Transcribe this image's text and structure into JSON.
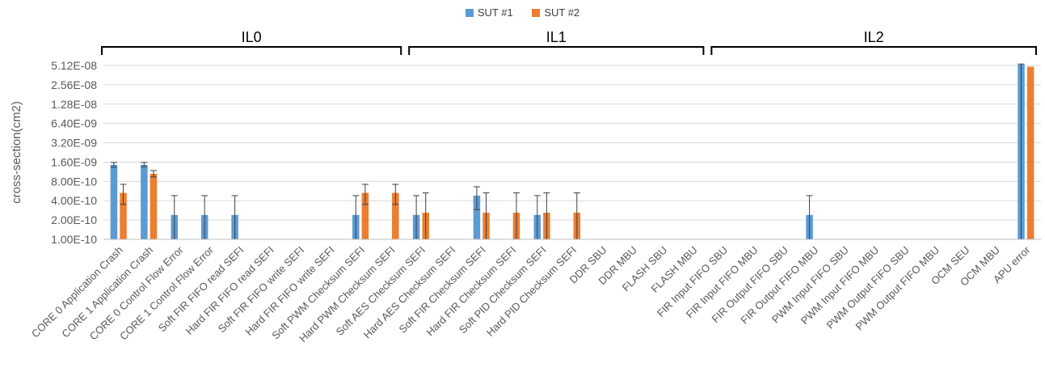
{
  "chart_data": {
    "type": "bar",
    "scale": "log2",
    "ylabel": "cross-section(cm2)",
    "yticks": [
      "1.00E-10",
      "2.00E-10",
      "4.00E-10",
      "8.00E-10",
      "1.60E-09",
      "3.20E-09",
      "6.40E-09",
      "1.28E-08",
      "2.56E-08",
      "5.12E-08"
    ],
    "ytick_values": [
      1e-10,
      2e-10,
      4e-10,
      8e-10,
      1.6e-09,
      3.2e-09,
      6.4e-09,
      1.28e-08,
      2.56e-08,
      5.12e-08
    ],
    "ylim": [
      1e-10,
      5.12e-08
    ],
    "grid": true,
    "legend_position": "top-center",
    "categories": [
      "CORE 0 Application Crash",
      "CORE 1 Application Crash",
      "CORE 0 Control Flow Error",
      "CORE 1 Control Flow Error",
      "Soft FIR FIFO read SEFI",
      "Hard FIR FIFO read SEFI",
      "Soft FIR FIFO write SEFI",
      "Hard FIR FIFO write SEFI",
      "Soft PWM Checksum SEFI",
      "Hard PWM  Checksum SEFI",
      "Soft AES  Checksum SEFI",
      "Hard AES  Checksum SEFI",
      "Soft FIR  Checksum SEFI",
      "Hard FIR  Checksum SEFI",
      "Soft PID  Checksum SEFI",
      "Hard PID  Checksum SEFI",
      "DDR SBU",
      "DDR MBU",
      "FLASH  SBU",
      "FLASH  MBU",
      "FIR Input FIFO  SBU",
      "FIR Input FIFO  MBU",
      "FIR Output FIFO  SBU",
      "FIR Output FIFO  MBU",
      "PWM Input FIFO  SBU",
      "PWM Input FIFO  MBU",
      "PWM Output FIFO  SBU",
      "PWM Output FIFO  MBU",
      "OCM SEU",
      "OCM MBU",
      "APU error"
    ],
    "series": [
      {
        "name": "SUT #1",
        "color": "#5B9BD5",
        "values": [
          1.45e-09,
          1.45e-09,
          2.4e-10,
          2.4e-10,
          2.4e-10,
          null,
          null,
          null,
          2.4e-10,
          null,
          2.4e-10,
          null,
          4.8e-10,
          null,
          2.4e-10,
          null,
          null,
          null,
          null,
          null,
          null,
          null,
          null,
          2.4e-10,
          null,
          null,
          null,
          null,
          null,
          null,
          5.3e-08
        ],
        "err_low": [
          1.33e-09,
          1.35e-09,
          null,
          null,
          null,
          null,
          null,
          null,
          null,
          null,
          null,
          null,
          2.9e-10,
          null,
          null,
          null,
          null,
          null,
          null,
          null,
          null,
          null,
          null,
          null,
          null,
          null,
          null,
          null,
          null,
          null,
          null
        ],
        "err_high": [
          1.58e-09,
          1.58e-09,
          4.8e-10,
          4.8e-10,
          4.8e-10,
          null,
          null,
          null,
          4.8e-10,
          null,
          4.8e-10,
          null,
          6.6e-10,
          null,
          4.8e-10,
          null,
          null,
          null,
          null,
          null,
          null,
          null,
          null,
          4.8e-10,
          null,
          null,
          null,
          null,
          null,
          null,
          5.4e-08
        ]
      },
      {
        "name": "SUT #2",
        "color": "#ED7D31",
        "values": [
          null,
          1.05e-09,
          null,
          null,
          null,
          null,
          null,
          null,
          5.3e-10,
          5.3e-10,
          2.6e-10,
          null,
          2.6e-10,
          2.6e-10,
          2.6e-10,
          2.6e-10,
          null,
          null,
          null,
          null,
          null,
          null,
          null,
          null,
          null,
          null,
          null,
          null,
          null,
          null,
          4.9e-08
        ],
        "err_low": [
          null,
          9.4e-10,
          null,
          null,
          null,
          null,
          null,
          null,
          3.5e-10,
          3.5e-10,
          null,
          null,
          null,
          null,
          null,
          null,
          null,
          null,
          null,
          null,
          null,
          null,
          null,
          null,
          null,
          null,
          null,
          null,
          null,
          null,
          null
        ],
        "err_high": [
          null,
          1.18e-09,
          null,
          null,
          null,
          null,
          null,
          null,
          7.2e-10,
          7.2e-10,
          5.3e-10,
          null,
          5.3e-10,
          5.3e-10,
          5.3e-10,
          5.3e-10,
          null,
          null,
          null,
          null,
          null,
          null,
          null,
          null,
          null,
          null,
          null,
          null,
          null,
          null,
          null
        ]
      }
    ],
    "series0_extra": {
      "index": 0,
      "value": 5.3e-10,
      "err_low": 3.5e-10,
      "err_high": 7.2e-10
    },
    "groups": [
      {
        "label": "IL0",
        "from": 0,
        "to": 9
      },
      {
        "label": "IL1",
        "from": 10,
        "to": 19
      },
      {
        "label": "IL2",
        "from": 20,
        "to": 30
      }
    ]
  }
}
